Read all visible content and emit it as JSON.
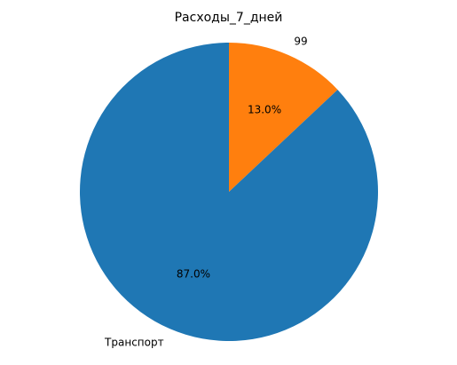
{
  "chart_data": {
    "type": "pie",
    "title": "Расходы_7_дней",
    "slices": [
      {
        "label": "99",
        "value": 13.0,
        "pct_label": "13.0%",
        "color": "#ff7f0e"
      },
      {
        "label": "Транспорт",
        "value": 87.0,
        "pct_label": "87.0%",
        "color": "#1f77b4"
      }
    ],
    "start_angle_deg": 90,
    "direction": "clockwise",
    "legend": "none"
  }
}
